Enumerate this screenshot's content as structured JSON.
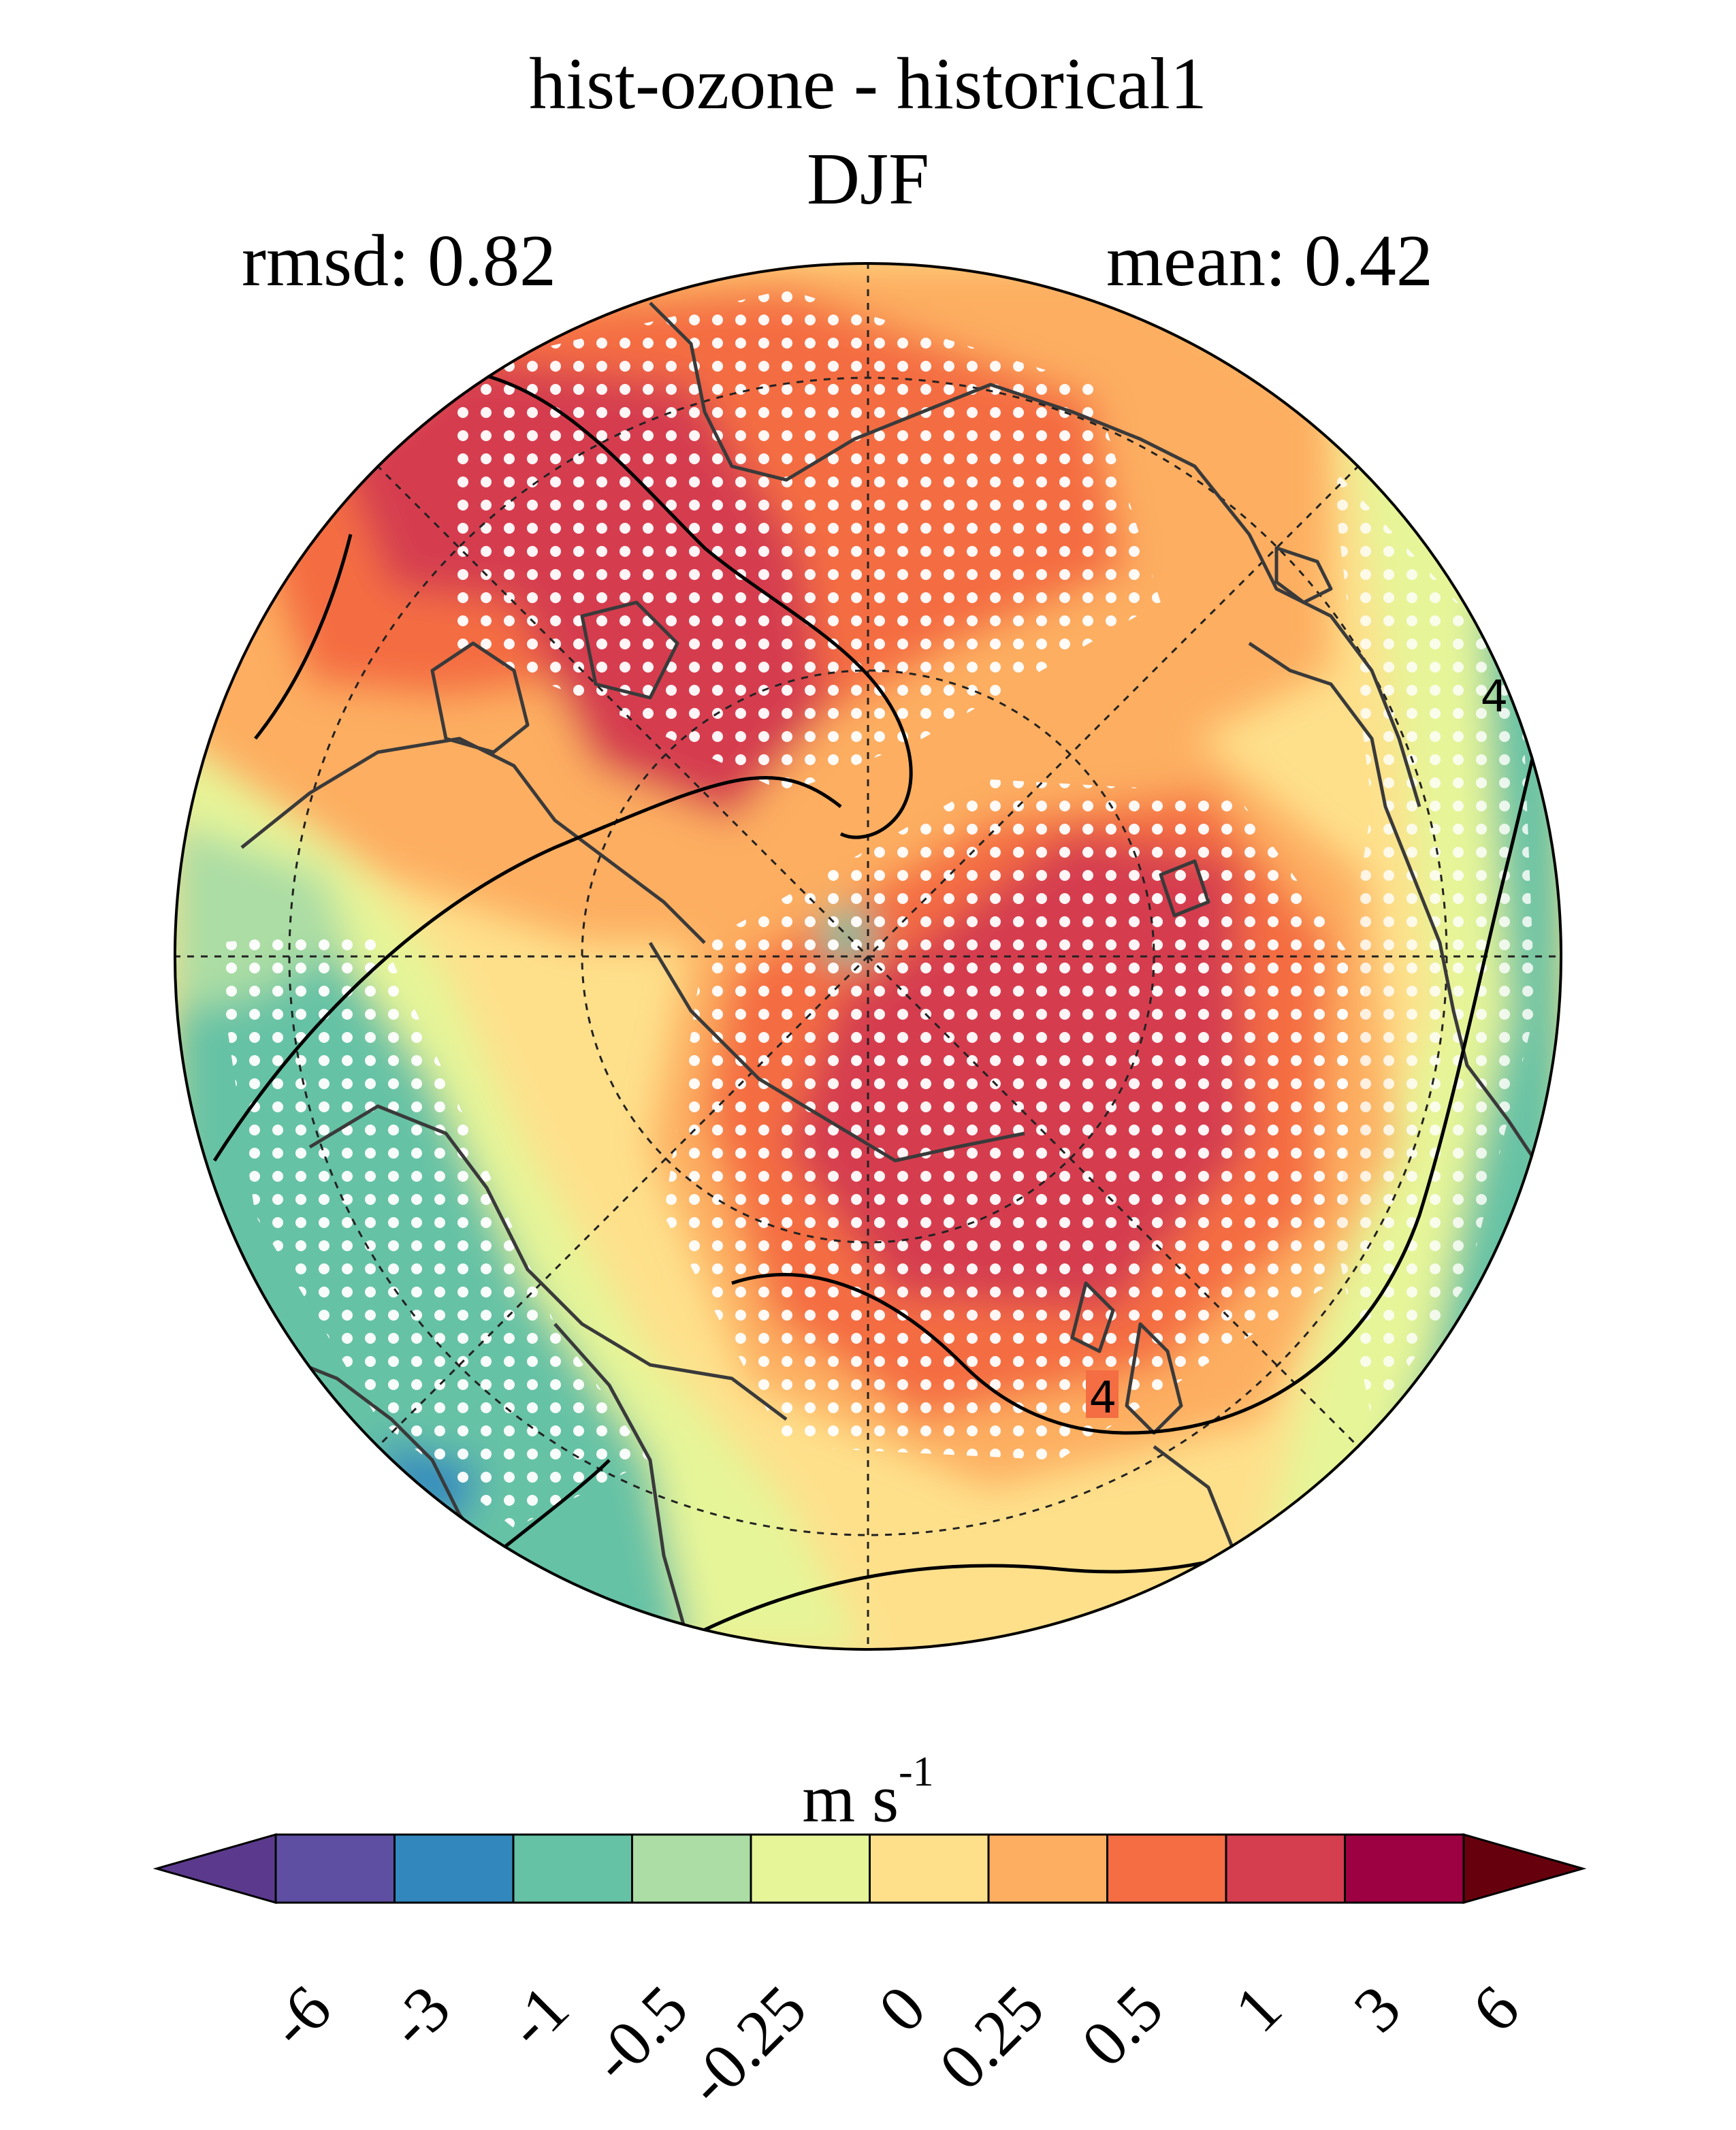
{
  "figure": {
    "title": "hist-ozone - historical1",
    "subtitle": "DJF",
    "rmsd_label": "rmsd: 0.82",
    "mean_label": "mean: 0.42"
  },
  "map": {
    "projection": "north polar stereographic",
    "contour_labels": [
      "4",
      "4"
    ],
    "stippling": "white dots mark significant regions"
  },
  "colorbar": {
    "unit": "m s",
    "unit_exponent": "-1",
    "tick_labels": [
      "-6",
      "-3",
      "-1",
      "-0.5",
      "-0.25",
      "0",
      "0.25",
      "0.5",
      "1",
      "3",
      "6"
    ],
    "colors": [
      "#5e4fa2",
      "#3288bd",
      "#66c2a5",
      "#abdda4",
      "#e6f598",
      "#fee08b",
      "#fdae61",
      "#f46d43",
      "#d53e4f",
      "#9e0142"
    ],
    "under_color": "#5b3a8e",
    "over_color": "#67000d"
  }
}
